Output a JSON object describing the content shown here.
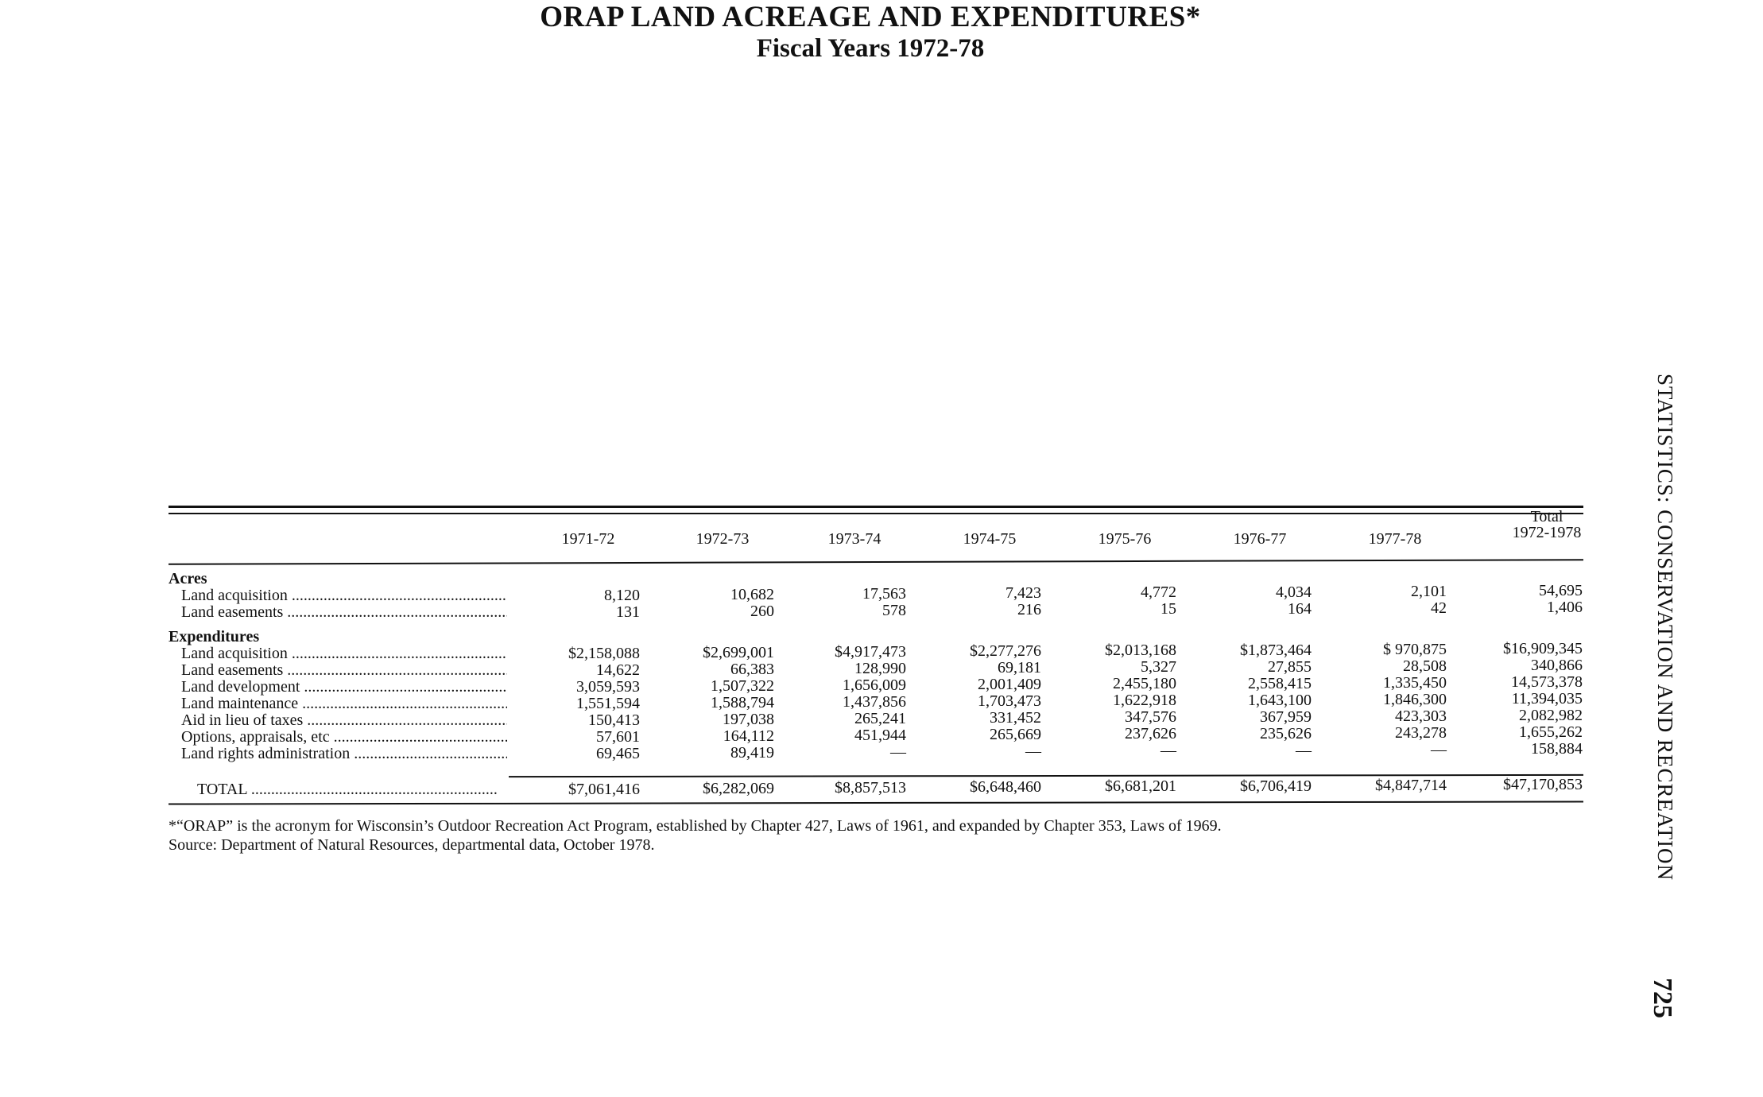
{
  "title": "ORAP LAND ACREAGE AND EXPENDITURES*",
  "subtitle": "Fiscal Years 1972-78",
  "columns": [
    "1971-72",
    "1972-73",
    "1973-74",
    "1974-75",
    "1975-76",
    "1976-77",
    "1977-78"
  ],
  "total_column": {
    "line1": "Total",
    "line2": "1972-1978"
  },
  "sections": [
    {
      "heading": "Acres",
      "rows": [
        {
          "label": "Land acquisition",
          "values": [
            "8,120",
            "10,682",
            "17,563",
            "7,423",
            "4,772",
            "4,034",
            "2,101",
            "54,695"
          ]
        },
        {
          "label": "Land easements",
          "values": [
            "131",
            "260",
            "578",
            "216",
            "15",
            "164",
            "42",
            "1,406"
          ]
        }
      ]
    },
    {
      "heading": "Expenditures",
      "rows": [
        {
          "label": "Land acquisition",
          "values": [
            "$2,158,088",
            "$2,699,001",
            "$4,917,473",
            "$2,277,276",
            "$2,013,168",
            "$1,873,464",
            "$ 970,875",
            "$16,909,345"
          ]
        },
        {
          "label": "Land easements",
          "values": [
            "14,622",
            "66,383",
            "128,990",
            "69,181",
            "5,327",
            "27,855",
            "28,508",
            "340,866"
          ]
        },
        {
          "label": "Land development",
          "values": [
            "3,059,593",
            "1,507,322",
            "1,656,009",
            "2,001,409",
            "2,455,180",
            "2,558,415",
            "1,335,450",
            "14,573,378"
          ]
        },
        {
          "label": "Land maintenance",
          "values": [
            "1,551,594",
            "1,588,794",
            "1,437,856",
            "1,703,473",
            "1,622,918",
            "1,643,100",
            "1,846,300",
            "11,394,035"
          ]
        },
        {
          "label": "Aid in lieu of taxes",
          "values": [
            "150,413",
            "197,038",
            "265,241",
            "331,452",
            "347,576",
            "367,959",
            "423,303",
            "2,082,982"
          ]
        },
        {
          "label": "Options, appraisals, etc",
          "values": [
            "57,601",
            "164,112",
            "451,944",
            "265,669",
            "237,626",
            "235,626",
            "243,278",
            "1,655,262"
          ]
        },
        {
          "label": "Land rights administration",
          "values": [
            "69,465",
            "89,419",
            "—",
            "—",
            "—",
            "—",
            "—",
            "158,884"
          ]
        }
      ]
    }
  ],
  "total_row": {
    "label": "TOTAL",
    "values": [
      "$7,061,416",
      "$6,282,069",
      "$8,857,513",
      "$6,648,460",
      "$6,681,201",
      "$6,706,419",
      "$4,847,714",
      "$47,170,853"
    ]
  },
  "footnote": "*“ORAP” is the acronym for Wisconsin’s Outdoor Recreation Act Program, established by Chapter 427, Laws of 1961, and expanded by Chapter 353, Laws of 1969.",
  "source": "Source: Department of Natural Resources, departmental data, October 1978.",
  "running_head": "STATISTICS: CONSERVATION AND RECREATION",
  "page_number": "725"
}
